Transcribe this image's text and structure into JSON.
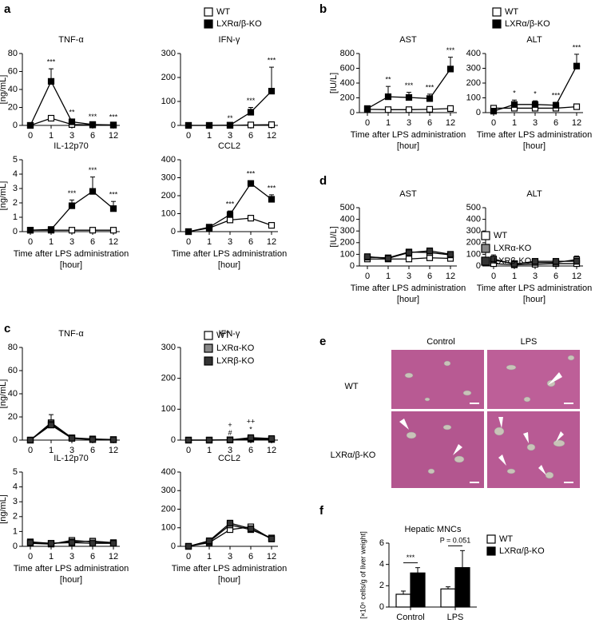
{
  "chart_data": [
    {
      "type": "line",
      "panel": "a",
      "title": "TNF-α",
      "y_label": "[ng/mL]",
      "categories": [
        "0",
        "1",
        "3",
        "6",
        "12"
      ],
      "series": [
        {
          "name": "WT",
          "color": "#ffffff",
          "values": [
            0,
            8,
            1,
            0.5,
            0.3
          ],
          "errors": [
            0,
            2,
            0.5,
            0,
            0
          ]
        },
        {
          "name": "LXRα/β-KO",
          "color": "#000000",
          "values": [
            0,
            49,
            4,
            1,
            0.5
          ],
          "errors": [
            0,
            14,
            3,
            1,
            1
          ]
        }
      ],
      "ylim": [
        0,
        80
      ],
      "yticks": [
        0,
        20,
        40,
        60,
        80
      ],
      "legend": true,
      "annotations": [
        {
          "category": "1",
          "text": "***"
        },
        {
          "category": "3",
          "text": "**"
        },
        {
          "category": "6",
          "text": "***"
        },
        {
          "category": "12",
          "text": "***"
        }
      ]
    },
    {
      "type": "line",
      "title": "IFN-γ",
      "categories": [
        "0",
        "1",
        "3",
        "6",
        "12"
      ],
      "series": [
        {
          "name": "WT",
          "color": "#ffffff",
          "values": [
            0,
            0,
            0,
            2,
            3
          ]
        },
        {
          "name": "LXRα/β-KO",
          "color": "#000000",
          "values": [
            0,
            0,
            1,
            55,
            143
          ],
          "errors": [
            0,
            0,
            1,
            20,
            100
          ]
        }
      ],
      "ylim": [
        0,
        300
      ],
      "yticks": [
        0,
        100,
        200,
        300
      ],
      "annotations": [
        {
          "category": "3",
          "text": "**"
        },
        {
          "category": "6",
          "text": "***"
        },
        {
          "category": "12",
          "text": "***"
        }
      ]
    },
    {
      "type": "line",
      "title": "IL-12p70",
      "y_label": "[ng/mL]",
      "x_label": [
        "Time after LPS administration",
        "[hour]"
      ],
      "categories": [
        "0",
        "1",
        "3",
        "6",
        "12"
      ],
      "series": [
        {
          "name": "WT",
          "color": "#ffffff",
          "values": [
            0.1,
            0.1,
            0.1,
            0.1,
            0.1
          ]
        },
        {
          "name": "LXRα/β-KO",
          "color": "#000000",
          "values": [
            0.1,
            0.15,
            1.8,
            2.8,
            1.6
          ],
          "errors": [
            0,
            0,
            0.4,
            1,
            0.5
          ]
        }
      ],
      "ylim": [
        0,
        5
      ],
      "yticks": [
        0,
        1,
        2,
        3,
        4,
        5
      ],
      "annotations": [
        {
          "category": "3",
          "text": "***"
        },
        {
          "category": "6",
          "text": "***"
        },
        {
          "category": "12",
          "text": "***"
        }
      ]
    },
    {
      "type": "line",
      "title": "CCL2",
      "x_label": [
        "Time after LPS administration",
        "[hour]"
      ],
      "categories": [
        "0",
        "1",
        "3",
        "6",
        "12"
      ],
      "series": [
        {
          "name": "WT",
          "color": "#ffffff",
          "values": [
            0,
            20,
            65,
            75,
            35
          ],
          "errors": [
            0,
            5,
            15,
            10,
            5
          ]
        },
        {
          "name": "LXRα/β-KO",
          "color": "#000000",
          "values": [
            0,
            25,
            95,
            268,
            180
          ],
          "errors": [
            0,
            5,
            20,
            15,
            25
          ]
        }
      ],
      "ylim": [
        0,
        400
      ],
      "yticks": [
        0,
        100,
        200,
        300,
        400
      ],
      "annotations": [
        {
          "category": "3",
          "text": "***"
        },
        {
          "category": "6",
          "text": "***"
        },
        {
          "category": "12",
          "text": "***"
        }
      ]
    },
    {
      "type": "line",
      "panel": "b",
      "title": "AST",
      "y_label": "[IU/L]",
      "x_label": [
        "Time after LPS administration",
        "[hour]"
      ],
      "categories": [
        "0",
        "1",
        "3",
        "6",
        "12"
      ],
      "series": [
        {
          "name": "WT",
          "color": "#ffffff",
          "values": [
            45,
            40,
            40,
            45,
            55
          ]
        },
        {
          "name": "LXRα/β-KO",
          "color": "#000000",
          "values": [
            55,
            215,
            205,
            190,
            590
          ],
          "errors": [
            10,
            140,
            70,
            60,
            160
          ]
        }
      ],
      "ylim": [
        0,
        800
      ],
      "yticks": [
        0,
        200,
        400,
        600,
        800
      ],
      "legend": true,
      "annotations": [
        {
          "category": "1",
          "text": "**"
        },
        {
          "category": "3",
          "text": "***"
        },
        {
          "category": "6",
          "text": "***"
        },
        {
          "category": "12",
          "text": "***"
        }
      ]
    },
    {
      "type": "line",
      "title": "ALT",
      "x_label": [
        "Time after LPS administration",
        "[hour]"
      ],
      "categories": [
        "0",
        "1",
        "3",
        "6",
        "12"
      ],
      "series": [
        {
          "name": "WT",
          "color": "#ffffff",
          "values": [
            30,
            30,
            30,
            30,
            40
          ],
          "errors": [
            5,
            5,
            5,
            5,
            10
          ]
        },
        {
          "name": "LXRα/β-KO",
          "color": "#000000",
          "values": [
            10,
            55,
            55,
            50,
            315
          ],
          "errors": [
            5,
            30,
            25,
            20,
            80
          ]
        }
      ],
      "ylim": [
        0,
        400
      ],
      "yticks": [
        0,
        100,
        200,
        300,
        400
      ],
      "annotations": [
        {
          "category": "1",
          "text": "*"
        },
        {
          "category": "3",
          "text": "*"
        },
        {
          "category": "6",
          "text": "***"
        },
        {
          "category": "12",
          "text": "***"
        }
      ]
    },
    {
      "type": "line",
      "panel": "d",
      "title": "AST",
      "y_label": "[IU/L]",
      "x_label": [
        "Time after LPS administration",
        "[hour]"
      ],
      "categories": [
        "0",
        "1",
        "3",
        "6",
        "12"
      ],
      "series": [
        {
          "name": "WT",
          "color": "#ffffff",
          "values": [
            60,
            60,
            60,
            70,
            65
          ]
        },
        {
          "name": "LXRα-KO",
          "color": "#888888",
          "values": [
            75,
            70,
            120,
            115,
            95
          ],
          "errors": [
            15,
            10,
            20,
            20,
            15
          ]
        },
        {
          "name": "LXRβ-KO",
          "color": "#333333",
          "values": [
            80,
            65,
            115,
            130,
            100
          ],
          "errors": [
            15,
            10,
            20,
            20,
            15
          ]
        }
      ],
      "ylim": [
        0,
        500
      ],
      "yticks": [
        0,
        100,
        200,
        300,
        400,
        500
      ]
    },
    {
      "type": "line",
      "title": "ALT",
      "x_label": [
        "Time after LPS administration",
        "[hour]"
      ],
      "categories": [
        "0",
        "1",
        "3",
        "6",
        "12"
      ],
      "series": [
        {
          "name": "WT",
          "color": "#ffffff",
          "values": [
            20,
            10,
            15,
            20,
            20
          ]
        },
        {
          "name": "LXRα-KO",
          "color": "#888888",
          "values": [
            50,
            20,
            30,
            30,
            55
          ],
          "errors": [
            45,
            10,
            10,
            10,
            30
          ]
        },
        {
          "name": "LXRβ-KO",
          "color": "#333333",
          "values": [
            60,
            15,
            40,
            40,
            40
          ],
          "errors": [
            20,
            10,
            10,
            10,
            15
          ]
        }
      ],
      "ylim": [
        0,
        500
      ],
      "yticks": [
        0,
        100,
        200,
        300,
        400,
        500
      ],
      "legend": true
    },
    {
      "type": "line",
      "panel": "c",
      "title": "TNF-α",
      "y_label": "[ng/mL]",
      "categories": [
        "0",
        "1",
        "3",
        "6",
        "12"
      ],
      "series": [
        {
          "name": "WT",
          "color": "#ffffff",
          "values": [
            0,
            15,
            2,
            1,
            0.5
          ],
          "errors": [
            0,
            7,
            1,
            0,
            0
          ]
        },
        {
          "name": "LXRα-KO",
          "color": "#888888",
          "values": [
            0,
            14,
            2,
            0.5,
            0.3
          ]
        },
        {
          "name": "LXRβ-KO",
          "color": "#333333",
          "values": [
            0,
            13,
            1.5,
            0.5,
            0.3
          ]
        }
      ],
      "ylim": [
        0,
        80
      ],
      "yticks": [
        0,
        20,
        40,
        60,
        80
      ],
      "legend": true
    },
    {
      "type": "line",
      "title": "IFN-γ",
      "categories": [
        "0",
        "1",
        "3",
        "6",
        "12"
      ],
      "series": [
        {
          "name": "WT",
          "color": "#ffffff",
          "values": [
            0,
            0,
            1,
            3,
            2
          ]
        },
        {
          "name": "LXRα-KO",
          "color": "#888888",
          "values": [
            0,
            0,
            0.5,
            5,
            3
          ]
        },
        {
          "name": "LXRβ-KO",
          "color": "#333333",
          "values": [
            0,
            0,
            0.5,
            8,
            5
          ],
          "errors": [
            0,
            0,
            1,
            4,
            3
          ]
        }
      ],
      "ylim": [
        0,
        300
      ],
      "yticks": [
        0,
        100,
        200,
        300
      ],
      "annotations": [
        {
          "category": "3",
          "text": "#"
        },
        {
          "category": "3",
          "text": "+"
        },
        {
          "category": "6",
          "text": "*"
        },
        {
          "category": "6",
          "text": "++"
        }
      ]
    },
    {
      "type": "line",
      "title": "IL-12p70",
      "y_label": "[ng/mL]",
      "x_label": [
        "Time after LPS administration",
        "[hour]"
      ],
      "categories": [
        "0",
        "1",
        "3",
        "6",
        "12"
      ],
      "series": [
        {
          "name": "WT",
          "color": "#ffffff",
          "values": [
            0.2,
            0.15,
            0.4,
            0.3,
            0.2
          ]
        },
        {
          "name": "LXRα-KO",
          "color": "#888888",
          "values": [
            0.3,
            0.2,
            0.3,
            0.35,
            0.25
          ]
        },
        {
          "name": "LXRβ-KO",
          "color": "#333333",
          "values": [
            0.25,
            0.2,
            0.25,
            0.2,
            0.2
          ]
        }
      ],
      "ylim": [
        0,
        5
      ],
      "yticks": [
        0,
        1,
        2,
        3,
        4,
        5
      ]
    },
    {
      "type": "line",
      "title": "CCL2",
      "x_label": [
        "Time after LPS administration",
        "[hour]"
      ],
      "categories": [
        "0",
        "1",
        "3",
        "6",
        "12"
      ],
      "series": [
        {
          "name": "WT",
          "color": "#ffffff",
          "values": [
            0,
            20,
            90,
            105,
            40
          ],
          "errors": [
            0,
            5,
            10,
            10,
            5
          ]
        },
        {
          "name": "LXRα-KO",
          "color": "#888888",
          "values": [
            0,
            25,
            115,
            90,
            45
          ]
        },
        {
          "name": "LXRβ-KO",
          "color": "#333333",
          "values": [
            0,
            30,
            125,
            95,
            40
          ],
          "errors": [
            0,
            5,
            15,
            10,
            5
          ]
        }
      ],
      "ylim": [
        0,
        400
      ],
      "yticks": [
        0,
        100,
        200,
        300,
        400
      ]
    },
    {
      "type": "bar",
      "panel": "f",
      "title": "Hepatic MNCs",
      "y_label": "[×10⁶ cells/g of liver weight]",
      "categories": [
        "Control",
        "LPS"
      ],
      "series": [
        {
          "name": "WT",
          "color": "#ffffff",
          "values": [
            1.2,
            1.7
          ],
          "errors": [
            0.3,
            0.2
          ]
        },
        {
          "name": "LXRα/β-KO",
          "color": "#000000",
          "values": [
            3.2,
            3.7
          ],
          "errors": [
            0.5,
            1.6
          ]
        }
      ],
      "ylim": [
        0,
        6
      ],
      "yticks": [
        0,
        2,
        4,
        6
      ],
      "legend": true,
      "annotations": [
        {
          "category": "Control",
          "text": "***"
        },
        {
          "category": "LPS",
          "text": "P = 0.051"
        }
      ]
    }
  ],
  "histology": {
    "panel": "e",
    "columns": [
      "Control",
      "LPS"
    ],
    "rows": [
      "WT",
      "LXRα/β-KO"
    ]
  }
}
